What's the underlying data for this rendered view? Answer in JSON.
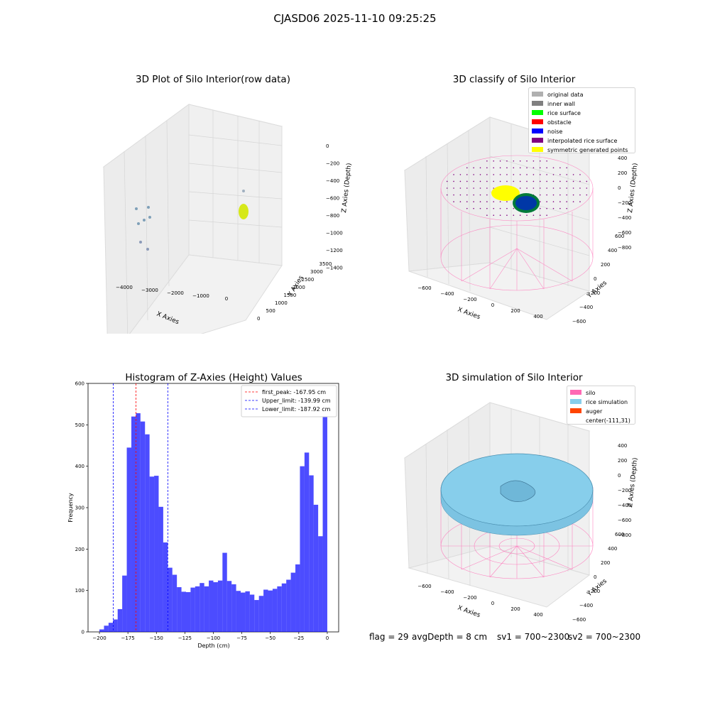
{
  "figure": {
    "title": "CJASD06 2025-11-10 09:25:25"
  },
  "panels": {
    "raw": {
      "title": "3D Plot of Silo Interior(row data)",
      "xlabel": "X Axies",
      "ylabel": "Y Axies",
      "zlabel": "Z Axies (Depth)",
      "xticks": [
        "-4000",
        "-3000",
        "-2000",
        "-1000",
        "0"
      ],
      "yticks": [
        "0",
        "500",
        "1000",
        "1500",
        "2000",
        "2500",
        "3000",
        "3500"
      ],
      "zticks": [
        "0",
        "-200",
        "-400",
        "-600",
        "-800",
        "-1000",
        "-1200",
        "-1400"
      ]
    },
    "classify": {
      "title": "3D classify of Silo Interior",
      "xlabel": "X Axies",
      "ylabel": "Y Axies",
      "zlabel": "Z Axies (Depth)",
      "xticks": [
        "-600",
        "-400",
        "-200",
        "0",
        "200",
        "400"
      ],
      "yticks": [
        "-600",
        "-400",
        "-200",
        "0",
        "200",
        "400",
        "600"
      ],
      "zticks": [
        "400",
        "200",
        "0",
        "-200",
        "-400",
        "-600",
        "-800"
      ],
      "legend": [
        {
          "label": "original data",
          "color": "#b0b0b0"
        },
        {
          "label": "inner wall",
          "color": "#808080"
        },
        {
          "label": "rice surface",
          "color": "#00ff00"
        },
        {
          "label": "obstacle",
          "color": "#ff0000"
        },
        {
          "label": "noise",
          "color": "#0000ff"
        },
        {
          "label": "interpolated rice surface",
          "color": "#800080"
        },
        {
          "label": "symmetric generated points",
          "color": "#ffff00"
        }
      ]
    },
    "simulation": {
      "title": "3D simulation of Silo Interior",
      "xlabel": "X Axies",
      "ylabel": "Y Axies",
      "zlabel": "Z Axies (Depth)",
      "xticks": [
        "-600",
        "-400",
        "-200",
        "0",
        "200",
        "400"
      ],
      "yticks": [
        "-600",
        "-400",
        "-200",
        "0",
        "200",
        "400",
        "600"
      ],
      "zticks": [
        "400",
        "200",
        "0",
        "-200",
        "-400",
        "-600",
        "-800"
      ],
      "legend": [
        {
          "label": "silo",
          "color": "#ff69b4"
        },
        {
          "label": "rice simulation",
          "color": "#87ceeb"
        },
        {
          "label": "auger",
          "color": "#ff4500"
        },
        {
          "label": "center(-111,31)",
          "color": ""
        }
      ]
    }
  },
  "chart_data": {
    "type": "bar",
    "title": "Histogram of Z-Axies (Height) Values",
    "xlabel": "Depth (cm)",
    "ylabel": "Frequency",
    "xlim": [
      -210,
      10
    ],
    "ylim": [
      0,
      600
    ],
    "xticks": [
      -200,
      -175,
      -150,
      -125,
      -100,
      -75,
      -50,
      -25,
      0
    ],
    "yticks": [
      0,
      100,
      200,
      300,
      400,
      500,
      600
    ],
    "bin_start": -200,
    "bin_width": 4,
    "values": [
      6,
      15,
      22,
      30,
      55,
      136,
      445,
      520,
      528,
      508,
      477,
      375,
      377,
      302,
      216,
      155,
      138,
      108,
      97,
      96,
      107,
      110,
      118,
      110,
      124,
      120,
      124,
      191,
      123,
      115,
      99,
      95,
      98,
      90,
      77,
      87,
      102,
      100,
      104,
      110,
      117,
      126,
      143,
      163,
      400,
      433,
      378,
      307,
      231,
      565
    ],
    "bar_color": "#0000ff",
    "legend_position": "top-right",
    "lines": [
      {
        "label": "first_peak: -167.95 cm",
        "x": -167.95,
        "color": "#ff0000"
      },
      {
        "label": "Upper_limit: -139.99 cm",
        "x": -139.99,
        "color": "#0000ff"
      },
      {
        "label": "Lower_limit: -187.92 cm",
        "x": -187.92,
        "color": "#0000ff"
      }
    ]
  },
  "status": {
    "flag": "flag = 29",
    "avg_depth": "avgDepth = 8 cm",
    "sv1": "sv1 = 700~2300",
    "sv2": "sv2 = 700~2300"
  }
}
